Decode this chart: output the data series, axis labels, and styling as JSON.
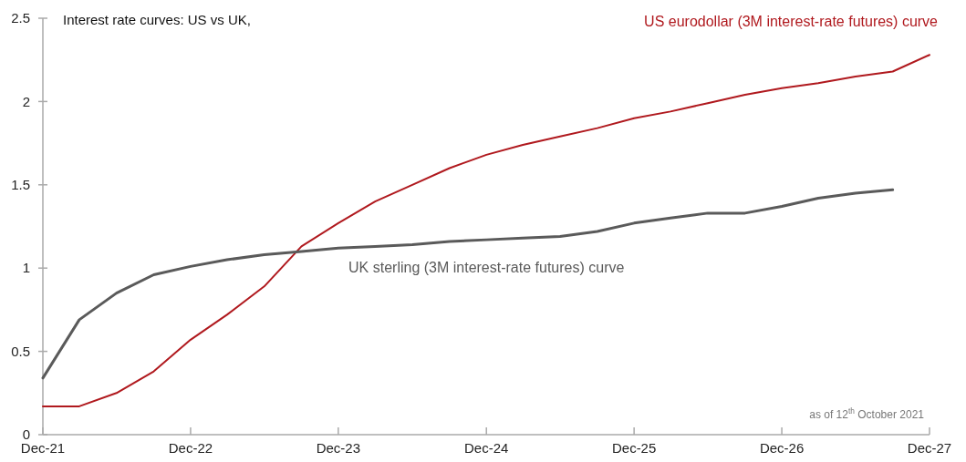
{
  "chart_data": {
    "type": "line",
    "title": "Interest rate curves: US vs UK,",
    "annotations": [
      "as of 12$^{th}$ October 2021"
    ],
    "x": [
      "2021-12",
      "2022-03",
      "2022-06",
      "2022-09",
      "2022-12",
      "2023-03",
      "2023-06",
      "2023-09",
      "2023-12",
      "2024-03",
      "2024-06",
      "2024-09",
      "2024-12",
      "2025-03",
      "2025-06",
      "2025-09",
      "2025-12",
      "2026-03",
      "2026-06",
      "2026-09",
      "2026-12",
      "2027-03",
      "2027-06",
      "2027-09",
      "2027-12"
    ],
    "series": [
      {
        "name": "US eurodollar (3M interest-rate futures) curve",
        "color": "#b0191e",
        "values": [
          0.17,
          0.17,
          0.25,
          0.38,
          0.57,
          0.72,
          0.89,
          1.13,
          1.27,
          1.4,
          1.5,
          1.6,
          1.68,
          1.74,
          1.79,
          1.84,
          1.9,
          1.94,
          1.99,
          2.04,
          2.08,
          2.11,
          2.15,
          2.18,
          2.28
        ]
      },
      {
        "name": "UK sterling (3M interest-rate futures) curve",
        "color": "#5a5a5a",
        "values": [
          0.34,
          0.69,
          0.85,
          0.96,
          1.01,
          1.05,
          1.08,
          1.1,
          1.12,
          1.13,
          1.14,
          1.16,
          1.17,
          1.18,
          1.19,
          1.22,
          1.27,
          1.3,
          1.33,
          1.33,
          1.37,
          1.42,
          1.45,
          1.47,
          null
        ]
      }
    ],
    "xlim": [
      "2021-12",
      "2027-12"
    ],
    "xticks": [
      {
        "value": "2021-12",
        "label": "Dec-21"
      },
      {
        "value": "2022-12",
        "label": "Dec-22"
      },
      {
        "value": "2023-12",
        "label": "Dec-23"
      },
      {
        "value": "2024-12",
        "label": "Dec-24"
      },
      {
        "value": "2025-12",
        "label": "Dec-25"
      },
      {
        "value": "2026-12",
        "label": "Dec-26"
      },
      {
        "value": "2027-12",
        "label": "Dec-27"
      }
    ],
    "ylim": [
      0,
      2.5
    ],
    "yticks": [
      0,
      0.5,
      1,
      1.5,
      2,
      2.5
    ],
    "grid": false,
    "legend": false,
    "marker": "none",
    "line_style": "solid"
  }
}
